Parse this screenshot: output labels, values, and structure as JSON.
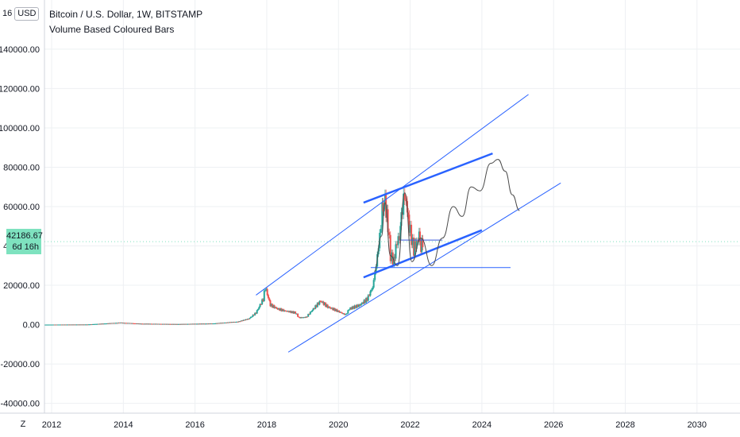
{
  "header": {
    "title": "Bitcoin / U.S. Dollar, 1W, BITSTAMP",
    "subtitle": "Volume Based Coloured Bars"
  },
  "top_left": {
    "price_stub": "16",
    "currency": "USD"
  },
  "current_price": {
    "value": "42186.67",
    "countdown": "6d 16h",
    "color": "#7ee2bf"
  },
  "zoom_label": "Z",
  "colors": {
    "up": "#26a69a",
    "down": "#ef5350",
    "trendline": "#2962ff",
    "projection": "#4a4a4a",
    "grid": "#eef0f3"
  },
  "chart_data": {
    "type": "line",
    "title": "Bitcoin / U.S. Dollar, 1W, BITSTAMP",
    "y_ticks": [
      "140000.00",
      "120000.00",
      "100000.00",
      "80000.00",
      "60000.00",
      "40000.00",
      "20000.00",
      "0.00",
      "-20000.00",
      "-40000.00"
    ],
    "x_ticks": [
      "2012",
      "2014",
      "2016",
      "2018",
      "2020",
      "2022",
      "2024",
      "2026",
      "2028",
      "2030"
    ],
    "ylim": [
      -45000,
      165000
    ],
    "xlim": [
      2011.8,
      2031.2
    ],
    "series": [
      {
        "values": [
          [
            2011.8,
            0
          ],
          [
            2013.0,
            100
          ],
          [
            2013.9,
            1000
          ],
          [
            2014.5,
            500
          ],
          [
            2015.5,
            300
          ],
          [
            2016.5,
            600
          ],
          [
            2017.2,
            1500
          ],
          [
            2017.5,
            3000
          ],
          [
            2017.7,
            6000
          ],
          [
            2017.9,
            13000
          ],
          [
            2017.96,
            19000
          ],
          [
            2018.1,
            10000
          ],
          [
            2018.3,
            8000
          ],
          [
            2018.5,
            7000
          ],
          [
            2018.8,
            6000
          ],
          [
            2018.9,
            3500
          ],
          [
            2019.1,
            3800
          ],
          [
            2019.3,
            8000
          ],
          [
            2019.5,
            12000
          ],
          [
            2019.7,
            9000
          ],
          [
            2019.9,
            7500
          ],
          [
            2020.2,
            5000
          ],
          [
            2020.3,
            8000
          ],
          [
            2020.6,
            10000
          ],
          [
            2020.8,
            13000
          ],
          [
            2020.95,
            19000
          ],
          [
            2021.05,
            30000
          ],
          [
            2021.15,
            45000
          ],
          [
            2021.22,
            58000
          ],
          [
            2021.3,
            63000
          ],
          [
            2021.38,
            50000
          ],
          [
            2021.45,
            35000
          ],
          [
            2021.55,
            32000
          ],
          [
            2021.6,
            40000
          ],
          [
            2021.7,
            45000
          ],
          [
            2021.78,
            60000
          ],
          [
            2021.85,
            66000
          ],
          [
            2021.92,
            57000
          ],
          [
            2022.0,
            47000
          ],
          [
            2022.1,
            38000
          ],
          [
            2022.18,
            42000
          ],
          [
            2022.25,
            45000
          ],
          [
            2022.3,
            39000
          ],
          [
            2022.35,
            42186
          ]
        ]
      }
    ],
    "trendlines": [
      {
        "kind": "channel-upper",
        "points": [
          [
            2017.7,
            15000
          ],
          [
            2025.3,
            117000
          ]
        ]
      },
      {
        "kind": "channel-lower",
        "points": [
          [
            2018.6,
            -14000
          ],
          [
            2026.2,
            72000
          ]
        ]
      },
      {
        "kind": "wedge-upper",
        "points": [
          [
            2020.7,
            62000
          ],
          [
            2024.3,
            87000
          ]
        ]
      },
      {
        "kind": "wedge-lower",
        "points": [
          [
            2020.7,
            24000
          ],
          [
            2024.0,
            48000
          ]
        ]
      },
      {
        "kind": "support",
        "points": [
          [
            2020.9,
            29000
          ],
          [
            2024.8,
            29000
          ]
        ]
      },
      {
        "kind": "range",
        "points": [
          [
            2021.7,
            43000
          ],
          [
            2022.9,
            43000
          ]
        ]
      }
    ],
    "projection": [
      [
        2021.0,
        27000
      ],
      [
        2021.2,
        45000
      ],
      [
        2021.3,
        62000
      ],
      [
        2021.45,
        35000
      ],
      [
        2021.65,
        30000
      ],
      [
        2021.85,
        67000
      ],
      [
        2022.05,
        32000
      ],
      [
        2022.3,
        44000
      ],
      [
        2022.6,
        30000
      ],
      [
        2022.9,
        44000
      ],
      [
        2023.2,
        60000
      ],
      [
        2023.45,
        55000
      ],
      [
        2023.7,
        70000
      ],
      [
        2023.95,
        68000
      ],
      [
        2024.25,
        82000
      ],
      [
        2024.45,
        84000
      ],
      [
        2024.65,
        78000
      ],
      [
        2024.85,
        66000
      ],
      [
        2025.05,
        58000
      ]
    ],
    "grid": true
  }
}
